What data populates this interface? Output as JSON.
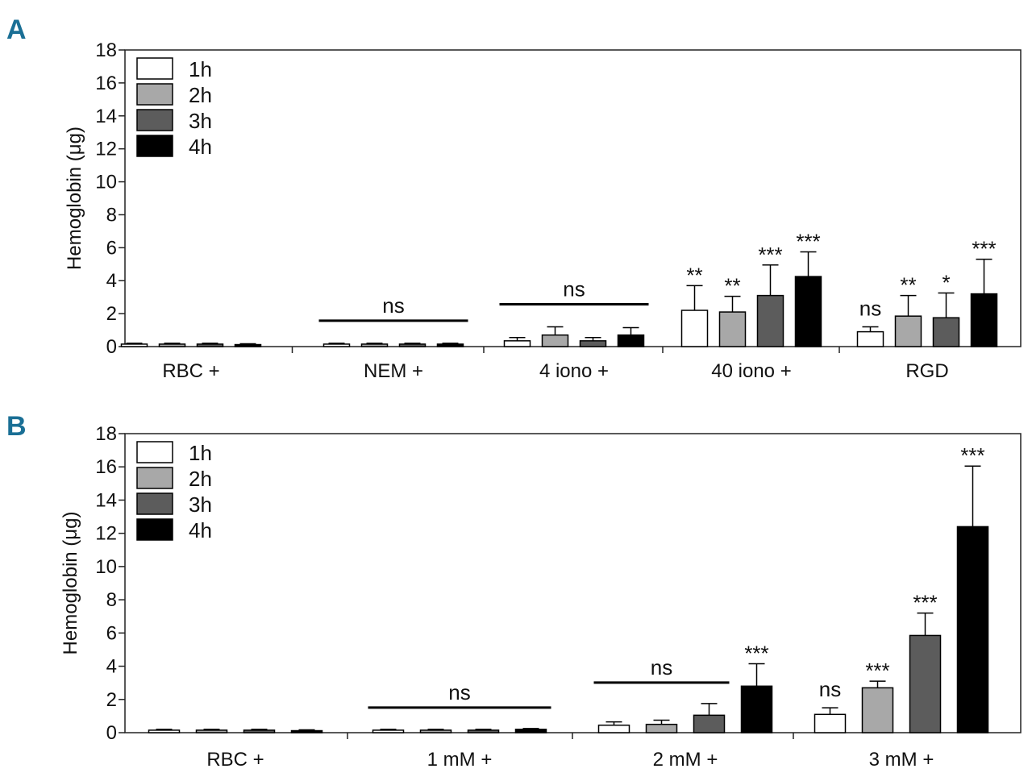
{
  "chart_data": [
    {
      "panel": "A",
      "type": "bar",
      "ylabel": "Hemoglobin (μg)",
      "ylim": [
        0,
        18
      ],
      "yticks": [
        0,
        2,
        4,
        6,
        8,
        10,
        12,
        14,
        16,
        18
      ],
      "categories": [
        "RBC +",
        "NEM +",
        "4 iono +",
        "40 iono +",
        "RGD"
      ],
      "legend": {
        "placement": "top-left"
      },
      "series": [
        {
          "name": "1h",
          "color": "#ffffff",
          "values": [
            0.15,
            0.15,
            0.35,
            2.2,
            0.9
          ],
          "errors": [
            0.05,
            0.05,
            0.2,
            1.5,
            0.3
          ]
        },
        {
          "name": "2h",
          "color": "#a8a8a8",
          "values": [
            0.15,
            0.15,
            0.7,
            2.1,
            1.85
          ],
          "errors": [
            0.05,
            0.05,
            0.5,
            0.95,
            1.25
          ]
        },
        {
          "name": "3h",
          "color": "#5c5c5c",
          "values": [
            0.15,
            0.15,
            0.35,
            3.1,
            1.75
          ],
          "errors": [
            0.05,
            0.05,
            0.2,
            1.85,
            1.5
          ]
        },
        {
          "name": "4h",
          "color": "#000000",
          "values": [
            0.12,
            0.15,
            0.7,
            4.25,
            3.2
          ],
          "errors": [
            0.05,
            0.05,
            0.45,
            1.5,
            2.1
          ]
        }
      ],
      "significance": [
        {
          "category": 1,
          "label": "ns",
          "bracket": true
        },
        {
          "category": 2,
          "label": "ns",
          "bracket": true
        },
        {
          "category": 3,
          "series": 0,
          "label": "**"
        },
        {
          "category": 3,
          "series": 1,
          "label": "**"
        },
        {
          "category": 3,
          "series": 2,
          "label": "***"
        },
        {
          "category": 3,
          "series": 3,
          "label": "***"
        },
        {
          "category": 4,
          "series": 0,
          "label": "ns"
        },
        {
          "category": 4,
          "series": 1,
          "label": "**"
        },
        {
          "category": 4,
          "series": 2,
          "label": "*"
        },
        {
          "category": 4,
          "series": 3,
          "label": "***"
        }
      ]
    },
    {
      "panel": "B",
      "type": "bar",
      "ylabel": "Hemoglobin (μg)",
      "ylim": [
        0,
        18
      ],
      "yticks": [
        0,
        2,
        4,
        6,
        8,
        10,
        12,
        14,
        16,
        18
      ],
      "categories": [
        "RBC +",
        "1 mM +",
        "2 mM +",
        "3 mM +"
      ],
      "legend": {
        "placement": "top-left"
      },
      "series": [
        {
          "name": "1h",
          "color": "#ffffff",
          "values": [
            0.15,
            0.15,
            0.45,
            1.1
          ],
          "errors": [
            0.05,
            0.05,
            0.2,
            0.4
          ]
        },
        {
          "name": "2h",
          "color": "#a8a8a8",
          "values": [
            0.15,
            0.15,
            0.5,
            2.7
          ],
          "errors": [
            0.05,
            0.05,
            0.25,
            0.4
          ]
        },
        {
          "name": "3h",
          "color": "#5c5c5c",
          "values": [
            0.15,
            0.15,
            1.05,
            5.85
          ],
          "errors": [
            0.05,
            0.05,
            0.7,
            1.35
          ]
        },
        {
          "name": "4h",
          "color": "#000000",
          "values": [
            0.12,
            0.2,
            2.8,
            12.4
          ],
          "errors": [
            0.05,
            0.05,
            1.35,
            3.65
          ]
        }
      ],
      "significance": [
        {
          "category": 1,
          "label": "ns",
          "bracket": true
        },
        {
          "category": 2,
          "label": "ns",
          "bracket": true,
          "span": [
            0,
            2
          ]
        },
        {
          "category": 2,
          "series": 3,
          "label": "***"
        },
        {
          "category": 3,
          "series": 0,
          "label": "ns"
        },
        {
          "category": 3,
          "series": 1,
          "label": "***"
        },
        {
          "category": 3,
          "series": 2,
          "label": "***"
        },
        {
          "category": 3,
          "series": 3,
          "label": "***"
        }
      ]
    }
  ]
}
